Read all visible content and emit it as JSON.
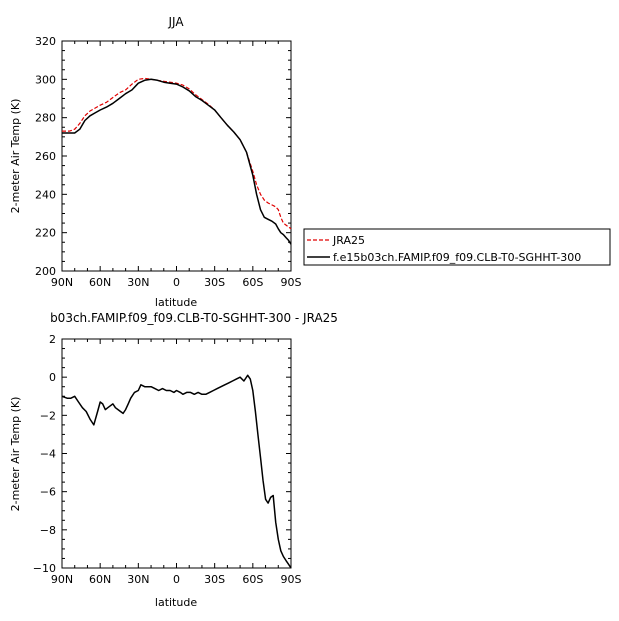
{
  "chart_data": [
    {
      "type": "line",
      "title": "JJA",
      "xlabel": "latitude",
      "ylabel": "2-meter Air Temp (K)",
      "xlim": [
        90,
        -90
      ],
      "ylim": [
        200,
        320
      ],
      "x_ticks": [
        90,
        60,
        30,
        0,
        -30,
        -60,
        -90
      ],
      "x_tick_labels": [
        "90N",
        "60N",
        "30N",
        "0",
        "30S",
        "60S",
        "90S"
      ],
      "y_ticks": [
        200,
        220,
        240,
        260,
        280,
        300,
        320
      ],
      "y_tick_labels": [
        "200",
        "220",
        "240",
        "260",
        "280",
        "300",
        "320"
      ],
      "legend": "outside-right",
      "grid": false,
      "series": [
        {
          "name": "JRA25",
          "color": "#e00000",
          "dash": "dashed",
          "x": [
            90,
            84,
            80,
            76,
            72,
            68,
            64,
            60,
            55,
            50,
            45,
            40,
            35,
            30,
            25,
            20,
            15,
            10,
            5,
            0,
            -5,
            -10,
            -15,
            -20,
            -25,
            -30,
            -35,
            -40,
            -45,
            -50,
            -55,
            -60,
            -63,
            -66,
            -69,
            -72,
            -75,
            -78,
            -80,
            -82,
            -84,
            -86,
            -88,
            -90
          ],
          "y": [
            273,
            273,
            274,
            277,
            281,
            283.5,
            285,
            286.5,
            288,
            290.5,
            293,
            294.5,
            297.5,
            300,
            300.5,
            300,
            299.5,
            299,
            298.5,
            298,
            297,
            295,
            292,
            289.5,
            287,
            284,
            280,
            276,
            272.5,
            268.5,
            262,
            252,
            245,
            240,
            237,
            235.5,
            234.5,
            233.5,
            232,
            228,
            225,
            224,
            223,
            222
          ]
        },
        {
          "name": "f.e15b03ch.FAMIP.f09_f09.CLB-T0-SGHHT-300",
          "color": "#000000",
          "dash": "solid",
          "x": [
            90,
            84,
            80,
            76,
            72,
            68,
            64,
            60,
            55,
            50,
            45,
            40,
            35,
            30,
            25,
            20,
            15,
            10,
            5,
            0,
            -5,
            -10,
            -15,
            -20,
            -25,
            -30,
            -35,
            -40,
            -45,
            -50,
            -55,
            -60,
            -63,
            -66,
            -69,
            -72,
            -75,
            -78,
            -80,
            -82,
            -84,
            -86,
            -88,
            -90
          ],
          "y": [
            272,
            272,
            272,
            274,
            278.5,
            281,
            282.5,
            284,
            285.5,
            287.5,
            290,
            292.5,
            294.5,
            298,
            299.5,
            300,
            299.5,
            298.5,
            298,
            297.5,
            296,
            294,
            291,
            289,
            286.5,
            284,
            280,
            276,
            272.5,
            268.5,
            262,
            250,
            240,
            232,
            228,
            227,
            226,
            224.5,
            222,
            220,
            219,
            217.5,
            216,
            214
          ]
        }
      ]
    },
    {
      "type": "line",
      "title": "b03ch.FAMIP.f09_f09.CLB-T0-SGHHT-300  -  JRA25",
      "xlabel": "latitude",
      "ylabel": "2-meter Air Temp (K)",
      "xlim": [
        90,
        -90
      ],
      "ylim": [
        -10,
        2
      ],
      "x_ticks": [
        90,
        60,
        30,
        0,
        -30,
        -60,
        -90
      ],
      "x_tick_labels": [
        "90N",
        "60N",
        "30N",
        "0",
        "30S",
        "60S",
        "90S"
      ],
      "y_ticks": [
        -10,
        -8,
        -6,
        -4,
        -2,
        0,
        2
      ],
      "y_tick_labels": [
        "−10",
        "−8",
        "−6",
        "−4",
        "−2",
        "0",
        "2"
      ],
      "grid": false,
      "series": [
        {
          "color": "#000000",
          "dash": "solid",
          "x": [
            90,
            86,
            83,
            80,
            77,
            74,
            71,
            68,
            65,
            62,
            60,
            58,
            56,
            54,
            52,
            50,
            48,
            46,
            44,
            42,
            40,
            38,
            36,
            33,
            30,
            28,
            25,
            22,
            20,
            17,
            14,
            11,
            8,
            5,
            2,
            0,
            -3,
            -5,
            -8,
            -11,
            -14,
            -17,
            -20,
            -23,
            -26,
            -29,
            -32,
            -35,
            -38,
            -41,
            -44,
            -47,
            -50,
            -53,
            -56,
            -58,
            -60,
            -62,
            -64,
            -66,
            -68,
            -70,
            -72,
            -74,
            -76,
            -78,
            -80,
            -82,
            -84,
            -86,
            -88,
            -90
          ],
          "y": [
            -1,
            -1.1,
            -1.1,
            -1,
            -1.3,
            -1.6,
            -1.8,
            -2.2,
            -2.5,
            -1.8,
            -1.3,
            -1.4,
            -1.7,
            -1.6,
            -1.5,
            -1.4,
            -1.6,
            -1.7,
            -1.8,
            -1.9,
            -1.7,
            -1.4,
            -1.1,
            -0.8,
            -0.7,
            -0.4,
            -0.5,
            -0.5,
            -0.5,
            -0.6,
            -0.7,
            -0.6,
            -0.7,
            -0.7,
            -0.8,
            -0.7,
            -0.8,
            -0.9,
            -0.8,
            -0.8,
            -0.9,
            -0.8,
            -0.9,
            -0.9,
            -0.8,
            -0.7,
            -0.6,
            -0.5,
            -0.4,
            -0.3,
            -0.2,
            -0.1,
            0,
            -0.2,
            0.1,
            -0.1,
            -0.7,
            -1.8,
            -3,
            -4.2,
            -5.4,
            -6.4,
            -6.6,
            -6.3,
            -6.2,
            -7.6,
            -8.5,
            -9.1,
            -9.4,
            -9.6,
            -9.8,
            -10
          ]
        }
      ]
    }
  ]
}
